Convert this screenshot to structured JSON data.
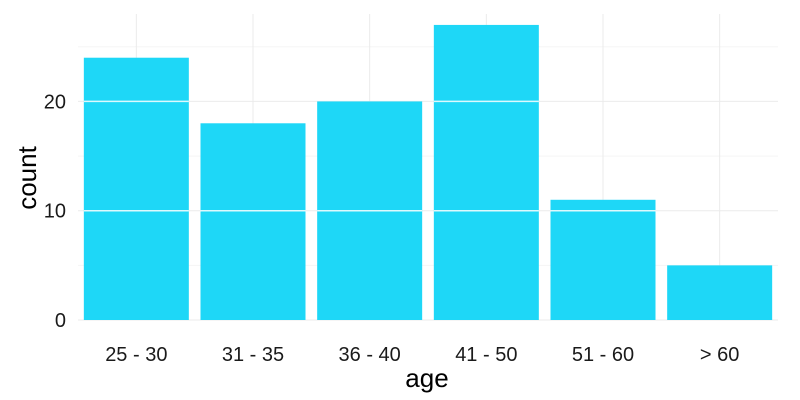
{
  "chart_data": {
    "type": "bar",
    "categories": [
      "25 - 30",
      "31 - 35",
      "36 - 40",
      "41 - 50",
      "51 - 60",
      "> 60"
    ],
    "values": [
      24,
      18,
      20,
      27,
      11,
      5
    ],
    "title": "",
    "xlabel": "age",
    "ylabel": "count",
    "ylim": [
      0,
      28
    ],
    "yticks": [
      0,
      10,
      20
    ],
    "grid": true,
    "bar_color": "#1ed7f7"
  }
}
